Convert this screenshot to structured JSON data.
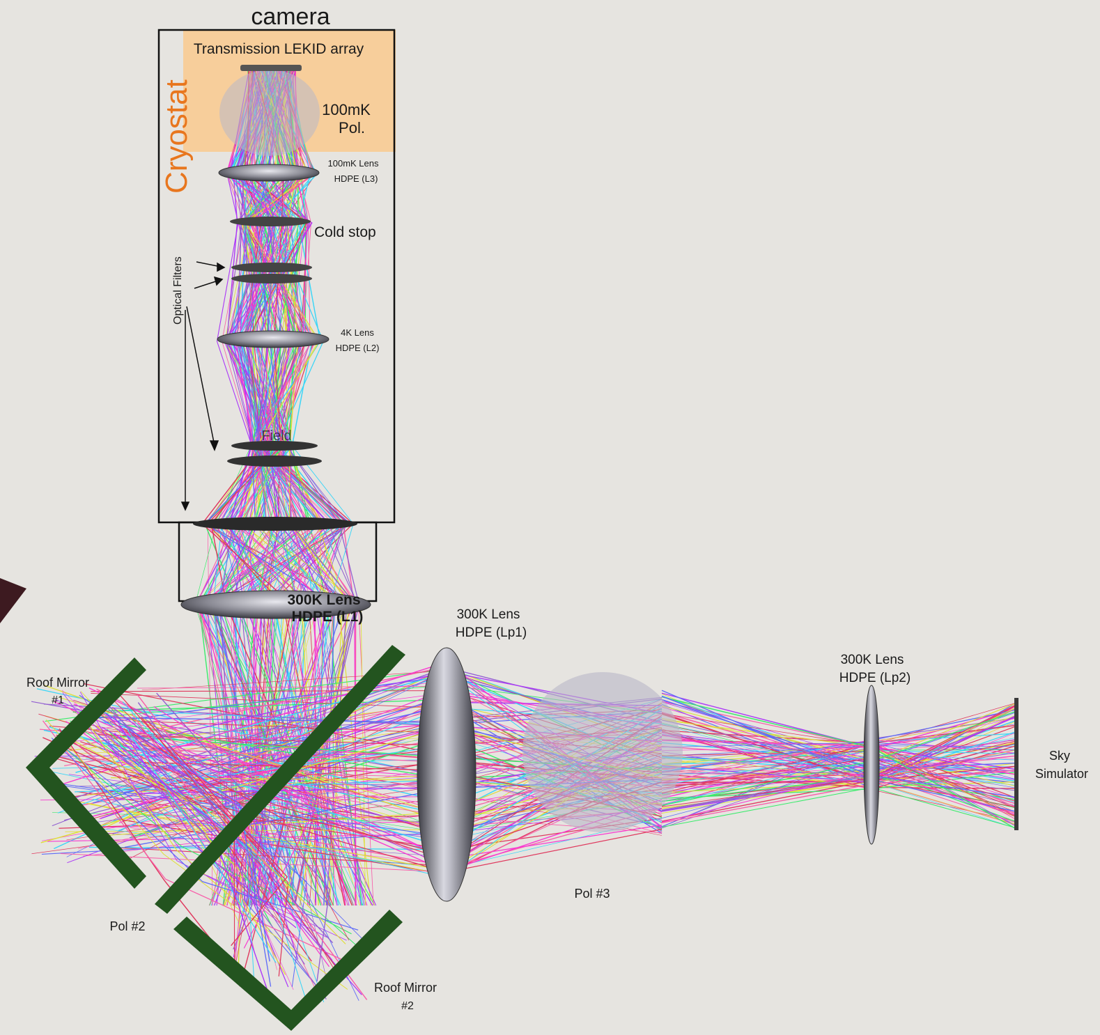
{
  "labels": {
    "camera": "camera",
    "lekid": "Transmission LEKID array",
    "cryostat": "Cryostat",
    "pol_100mk_1": "100mK",
    "pol_100mk_2": "Pol.",
    "lens_l3_1": "100mK Lens",
    "lens_l3_2": "HDPE (L3)",
    "cold_stop": "Cold stop",
    "optical_filters": "Optical Filters",
    "lens_l2_1": "4K Lens",
    "lens_l2_2": "HDPE (L2)",
    "field_stop": "Field",
    "lens_l1_1": "300K Lens",
    "lens_l1_2": "HDPE (L1)",
    "lens_lp1_1": "300K Lens",
    "lens_lp1_2": "HDPE (Lp1)",
    "lens_lp2_1": "300K Lens",
    "lens_lp2_2": "HDPE (Lp2)",
    "roof1_1": "Roof Mirror",
    "roof1_2": "#1",
    "roof2_1": "Roof Mirror",
    "roof2_2": "#2",
    "pol2": "Pol #2",
    "pol3": "Pol #3",
    "sky_1": "Sky",
    "sky_2": "Simulator"
  },
  "colors": {
    "background": "#e6e4e0",
    "cryostat_fill": "#f8cb93",
    "cryostat_text": "#e8761e",
    "mirror_green": "#23541f",
    "lens_grey": "#7a7a80",
    "polarizer_grey": "#b9b8c6",
    "ray_colors": [
      "#ff00cc",
      "#dd0033",
      "#9900ff",
      "#3344ff",
      "#00d0ff",
      "#00ee44",
      "#dddd00",
      "#ff3399",
      "#7733cc"
    ]
  },
  "icons": {
    "corner_marker": "triangle-pointer-icon"
  }
}
